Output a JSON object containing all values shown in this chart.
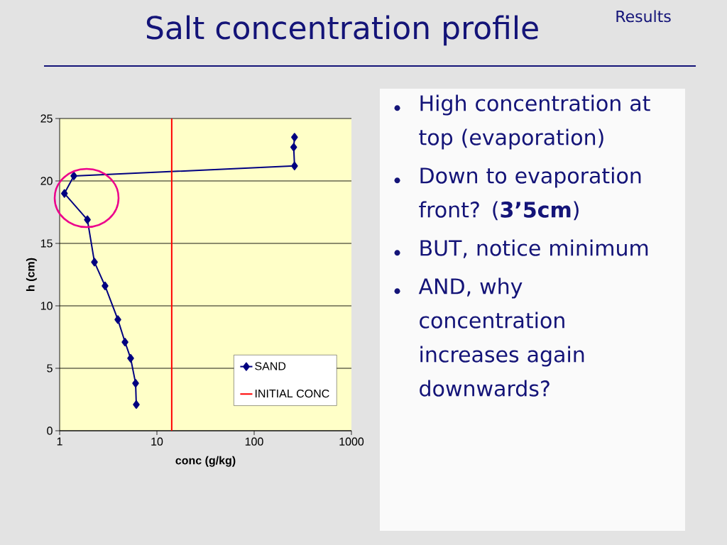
{
  "chart_data": {
    "type": "line",
    "title": "Salt concentration profile",
    "subtitle": "Results",
    "xlabel": "conc (g/kg)",
    "ylabel": "h (cm)",
    "log": "x",
    "xlim": [
      1,
      1000
    ],
    "xticks": [
      1,
      10,
      100,
      1000
    ],
    "ylim": [
      0,
      25
    ],
    "yticks": [
      0,
      5,
      10,
      15,
      20,
      25
    ],
    "grid": "y",
    "legend": "bottom right",
    "marker": "diamond",
    "line_style": "solid",
    "series": [
      {
        "name": "SAND",
        "color": "#000080",
        "x": [
          260,
          255,
          260,
          1.4,
          1.12,
          1.93,
          2.28,
          2.93,
          3.97,
          4.7,
          5.37,
          6.04,
          6.14
        ],
        "values": [
          23.5,
          22.7,
          21.2,
          20.4,
          19.0,
          16.9,
          13.5,
          11.6,
          8.9,
          7.1,
          5.8,
          3.8,
          2.1
        ]
      },
      {
        "name": "INITIAL CONC",
        "color": "#ff0000",
        "marker": "none",
        "x": [
          14.2,
          14.2
        ],
        "values": [
          0,
          25
        ]
      }
    ],
    "annotations": [
      "High concentration at top (evaporation)",
      "Down to evaporation front? (**3’5cm**)",
      "BUT, notice minimum",
      "AND, why concentration increases again downwards?"
    ]
  }
}
